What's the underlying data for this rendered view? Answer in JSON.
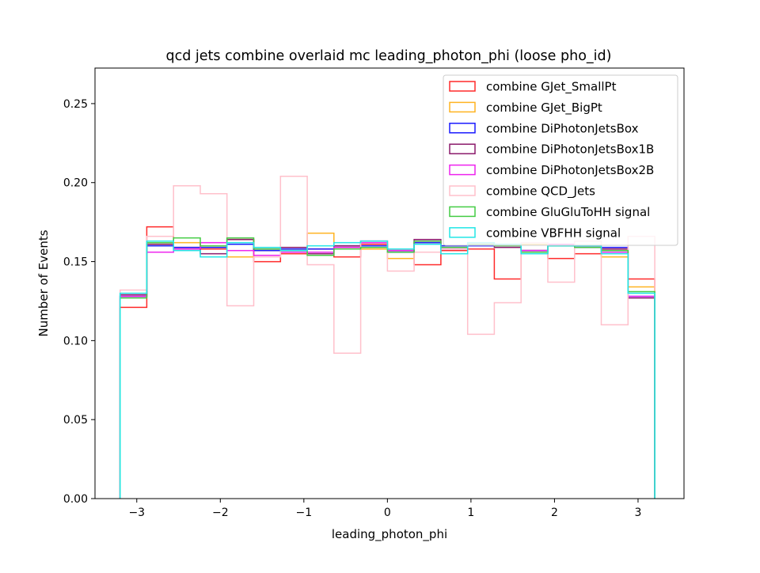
{
  "chart_data": {
    "type": "histogram-step",
    "title": "qcd jets combine overlaid mc leading_photon_phi (loose pho_id)",
    "xlabel": "leading_photon_phi",
    "ylabel": "Number of Events",
    "xlim": [
      -3.5,
      3.55
    ],
    "ylim": [
      0.0,
      0.2725
    ],
    "xticks": [
      -3,
      -2,
      -1,
      0,
      1,
      2,
      3
    ],
    "xtick_labels": [
      "−3",
      "−2",
      "−1",
      "0",
      "1",
      "2",
      "3"
    ],
    "yticks": [
      0.0,
      0.05,
      0.1,
      0.15,
      0.2,
      0.25
    ],
    "ytick_labels": [
      "0.00",
      "0.05",
      "0.10",
      "0.15",
      "0.20",
      "0.25"
    ],
    "bin_edges": [
      -3.2,
      -2.88,
      -2.56,
      -2.24,
      -1.92,
      -1.6,
      -1.28,
      -0.96,
      -0.64,
      -0.32,
      0.0,
      0.32,
      0.64,
      0.96,
      1.28,
      1.6,
      1.92,
      2.24,
      2.56,
      2.88,
      3.2
    ],
    "legend_position": "top-right",
    "series": [
      {
        "name": "combine GJet_SmallPt",
        "color": "#ff2a2a",
        "values": [
          0.121,
          0.172,
          0.159,
          0.158,
          0.164,
          0.15,
          0.155,
          0.158,
          0.153,
          0.161,
          0.157,
          0.148,
          0.157,
          0.158,
          0.139,
          0.157,
          0.152,
          0.155,
          0.158,
          0.139
        ]
      },
      {
        "name": "combine GJet_BigPt",
        "color": "#ffb320",
        "values": [
          0.128,
          0.161,
          0.162,
          0.159,
          0.153,
          0.157,
          0.157,
          0.168,
          0.159,
          0.158,
          0.152,
          0.162,
          0.16,
          0.161,
          0.16,
          0.161,
          0.161,
          0.159,
          0.153,
          0.134
        ]
      },
      {
        "name": "combine DiPhotonJetsBox",
        "color": "#1a1aff",
        "values": [
          0.128,
          0.16,
          0.159,
          0.159,
          0.161,
          0.157,
          0.158,
          0.158,
          0.16,
          0.16,
          0.156,
          0.162,
          0.16,
          0.16,
          0.16,
          0.157,
          0.16,
          0.159,
          0.159,
          0.128
        ]
      },
      {
        "name": "combine DiPhotonJetsBox1B",
        "color": "#8b1a6b",
        "values": [
          0.129,
          0.161,
          0.158,
          0.155,
          0.164,
          0.158,
          0.159,
          0.155,
          0.16,
          0.163,
          0.157,
          0.164,
          0.158,
          0.161,
          0.159,
          0.157,
          0.16,
          0.159,
          0.158,
          0.127
        ]
      },
      {
        "name": "combine DiPhotonJetsBox2B",
        "color": "#ee22ee",
        "values": [
          0.128,
          0.156,
          0.158,
          0.162,
          0.157,
          0.154,
          0.156,
          0.156,
          0.159,
          0.162,
          0.157,
          0.163,
          0.158,
          0.161,
          0.16,
          0.157,
          0.161,
          0.159,
          0.156,
          0.128
        ]
      },
      {
        "name": "combine QCD_Jets",
        "color": "#ffc0cb",
        "values": [
          0.132,
          0.166,
          0.198,
          0.193,
          0.122,
          0.153,
          0.204,
          0.148,
          0.092,
          0.163,
          0.144,
          0.156,
          0.158,
          0.104,
          0.124,
          0.162,
          0.137,
          0.163,
          0.11,
          0.166
        ]
      },
      {
        "name": "combine GluGluToHH signal",
        "color": "#44cc44",
        "values": [
          0.127,
          0.162,
          0.165,
          0.16,
          0.165,
          0.158,
          0.157,
          0.154,
          0.158,
          0.159,
          0.156,
          0.163,
          0.159,
          0.161,
          0.16,
          0.156,
          0.16,
          0.159,
          0.157,
          0.131
        ]
      },
      {
        "name": "combine VBFHH signal",
        "color": "#22e6e6",
        "values": [
          0.13,
          0.163,
          0.157,
          0.153,
          0.162,
          0.159,
          0.157,
          0.16,
          0.162,
          0.163,
          0.158,
          0.161,
          0.155,
          0.162,
          0.161,
          0.155,
          0.16,
          0.16,
          0.155,
          0.13
        ]
      }
    ]
  }
}
